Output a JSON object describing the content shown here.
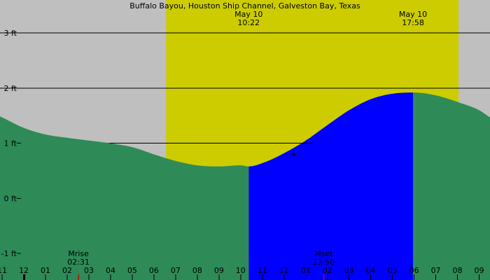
{
  "chart_data": {
    "type": "area",
    "title": "Buffalo Bayou, Houston Ship Channel, Galveston Bay, Texas",
    "x_unit": "hours",
    "y_unit": "ft",
    "xlim": [
      -0.1,
      22.5
    ],
    "ylim": [
      -1.48,
      3.6
    ],
    "y_ticks": [
      {
        "value": 3,
        "label": "3 ft"
      },
      {
        "value": 2,
        "label": "2 ft"
      },
      {
        "value": 1,
        "label": "1 ft"
      },
      {
        "value": 0,
        "label": "0 ft"
      },
      {
        "value": -1,
        "label": "-1 ft"
      }
    ],
    "x_ticks": [
      {
        "value": 0,
        "label": "11"
      },
      {
        "value": 1,
        "label": "12"
      },
      {
        "value": 2,
        "label": "01"
      },
      {
        "value": 3,
        "label": "02"
      },
      {
        "value": 4,
        "label": "03"
      },
      {
        "value": 5,
        "label": "04"
      },
      {
        "value": 6,
        "label": "05"
      },
      {
        "value": 7,
        "label": "06"
      },
      {
        "value": 8,
        "label": "07"
      },
      {
        "value": 9,
        "label": "08"
      },
      {
        "value": 10,
        "label": "09"
      },
      {
        "value": 11,
        "label": "10"
      },
      {
        "value": 12,
        "label": "11"
      },
      {
        "value": 13,
        "label": "12"
      },
      {
        "value": 14,
        "label": "01"
      },
      {
        "value": 15,
        "label": "02"
      },
      {
        "value": 16,
        "label": "03"
      },
      {
        "value": 17,
        "label": "04"
      },
      {
        "value": 18,
        "label": "05"
      },
      {
        "value": 19,
        "label": "06"
      },
      {
        "value": 20,
        "label": "07"
      },
      {
        "value": 21,
        "label": "08"
      },
      {
        "value": 22,
        "label": "09"
      }
    ],
    "tide_series": {
      "x": [
        0,
        1,
        2,
        3,
        4,
        5,
        6,
        7,
        8,
        9,
        10,
        11,
        11.37,
        12,
        13,
        14,
        15,
        16,
        17,
        18,
        18.95,
        19,
        20,
        21,
        22,
        22.5
      ],
      "y": [
        1.47,
        1.28,
        1.16,
        1.1,
        1.05,
        1.0,
        0.93,
        0.8,
        0.68,
        0.6,
        0.58,
        0.6,
        0.58,
        0.64,
        0.82,
        1.05,
        1.33,
        1.6,
        1.8,
        1.9,
        1.92,
        1.92,
        1.87,
        1.75,
        1.6,
        1.47
      ]
    },
    "daylight_band": {
      "x_start": 7.56,
      "x_end": 21.05
    },
    "flood_window": {
      "x_start": 11.37,
      "x_end": 18.95
    },
    "events": [
      {
        "kind": "low",
        "date": "May 10",
        "time": "10:22",
        "x": 11.37,
        "y": 0.58
      },
      {
        "kind": "high",
        "date": "May 10",
        "time": "17:58",
        "x": 18.95,
        "y": 1.92
      }
    ],
    "moon": [
      {
        "label": "Mrise",
        "time": "02:31",
        "x": 3.52
      },
      {
        "label": "Mset",
        "time": "13:50",
        "x": 14.83
      }
    ],
    "marker": {
      "x": 13.45,
      "y": 0.8
    },
    "midnight_x": 1,
    "colors": {
      "background": "#bfbfbf",
      "daylight": "#cccc00",
      "water": "#2e8b57",
      "flood": "#0000ff",
      "grid": "#000000",
      "moon_tick": "#cc0000"
    }
  }
}
